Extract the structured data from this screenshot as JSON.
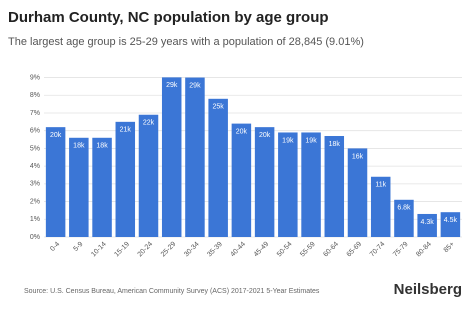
{
  "chart_data": {
    "type": "bar",
    "title": "Durham County, NC population by age group",
    "subtitle": "The largest age group is 25-29 years with a population of 28,845 (9.01%)",
    "categories": [
      "0-4",
      "5-9",
      "10-14",
      "15-19",
      "20-24",
      "25-29",
      "30-34",
      "35-39",
      "40-44",
      "45-49",
      "50-54",
      "55-59",
      "60-64",
      "65-69",
      "70-74",
      "75-79",
      "80-84",
      "85+"
    ],
    "values": [
      6.2,
      5.6,
      5.6,
      6.5,
      6.9,
      9.01,
      9.0,
      7.8,
      6.4,
      6.2,
      5.9,
      5.9,
      5.7,
      5.0,
      3.4,
      2.1,
      1.3,
      1.4
    ],
    "bar_labels": [
      "20k",
      "18k",
      "18k",
      "21k",
      "22k",
      "29k",
      "29k",
      "25k",
      "20k",
      "20k",
      "19k",
      "19k",
      "18k",
      "16k",
      "11k",
      "6.8k",
      "4.3k",
      "4.5k"
    ],
    "color": "#3b76d6",
    "ylim": [
      0,
      9.2
    ],
    "yticks": [
      {
        "value": 0,
        "label": "0%"
      },
      {
        "value": 1,
        "label": "1%"
      },
      {
        "value": 2,
        "label": "2%"
      },
      {
        "value": 3,
        "label": "3%"
      },
      {
        "value": 4,
        "label": "4%"
      },
      {
        "value": 5,
        "label": "5%"
      },
      {
        "value": 6,
        "label": "6%"
      },
      {
        "value": 7,
        "label": "7%"
      },
      {
        "value": 8,
        "label": "8%"
      },
      {
        "value": 9,
        "label": "9%"
      }
    ],
    "grid": true,
    "source": "Source: U.S. Census Bureau, American Community Survey (ACS) 2017-2021 5-Year Estimates",
    "brand": "Neilsberg"
  }
}
